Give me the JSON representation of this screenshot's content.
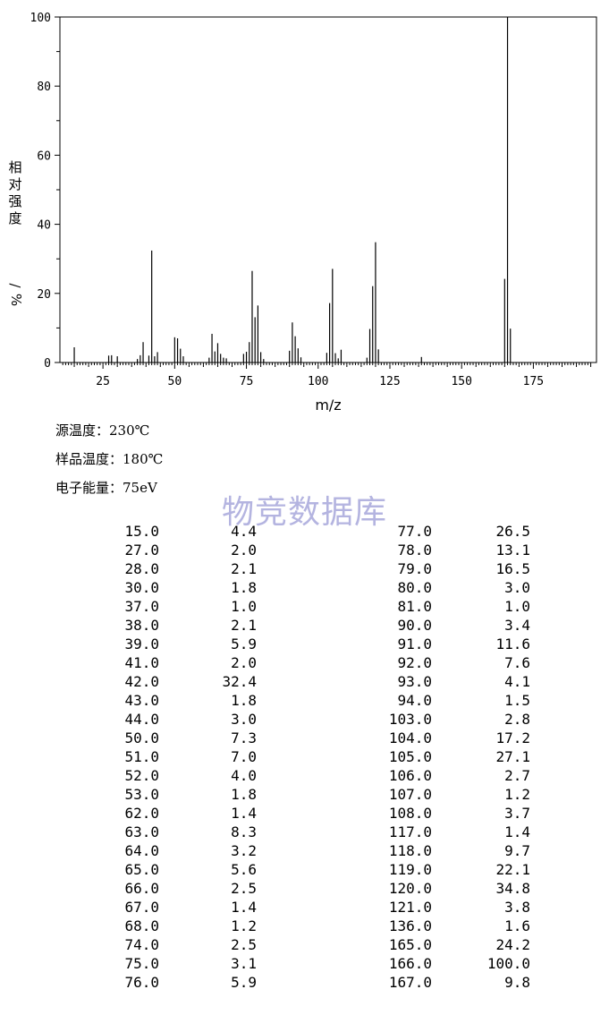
{
  "chart_data": {
    "type": "bar",
    "title": "",
    "xlabel": "m/z",
    "ylabel": "相对强度/%",
    "xlim": [
      10,
      197
    ],
    "ylim": [
      0,
      100
    ],
    "xticks": [
      "25",
      "50",
      "75",
      "100",
      "125",
      "150",
      "175"
    ],
    "yticks": [
      "0",
      "20",
      "40",
      "60",
      "80",
      "100"
    ],
    "grid": false,
    "x": [
      15,
      27,
      28,
      30,
      37,
      38,
      39,
      41,
      42,
      43,
      44,
      50,
      51,
      52,
      53,
      62,
      63,
      64,
      65,
      66,
      67,
      68,
      74,
      75,
      76,
      77,
      78,
      79,
      80,
      81,
      90,
      91,
      92,
      93,
      94,
      103,
      104,
      105,
      106,
      107,
      108,
      117,
      118,
      119,
      120,
      121,
      136,
      165,
      166,
      167
    ],
    "values": [
      4.4,
      2.0,
      2.1,
      1.8,
      1.0,
      2.1,
      5.9,
      2.0,
      32.4,
      1.8,
      3.0,
      7.3,
      7.0,
      4.0,
      1.8,
      1.4,
      8.3,
      3.2,
      5.6,
      2.5,
      1.4,
      1.2,
      2.5,
      3.1,
      5.9,
      26.5,
      13.1,
      16.5,
      3.0,
      1.0,
      3.4,
      11.6,
      7.6,
      4.1,
      1.5,
      2.8,
      17.2,
      27.1,
      2.7,
      1.2,
      3.7,
      1.4,
      9.7,
      22.1,
      34.8,
      3.8,
      1.6,
      24.2,
      100.0,
      9.8
    ]
  },
  "conditions": {
    "source_temp": "源温度：230℃",
    "sample_temp": "样品温度：180℃",
    "electron_energy": "电子能量：75eV"
  },
  "watermark": "物竞数据库",
  "table": {
    "rows": [
      [
        "15.0",
        "4.4",
        "77.0",
        "26.5"
      ],
      [
        "27.0",
        "2.0",
        "78.0",
        "13.1"
      ],
      [
        "28.0",
        "2.1",
        "79.0",
        "16.5"
      ],
      [
        "30.0",
        "1.8",
        "80.0",
        "3.0"
      ],
      [
        "37.0",
        "1.0",
        "81.0",
        "1.0"
      ],
      [
        "38.0",
        "2.1",
        "90.0",
        "3.4"
      ],
      [
        "39.0",
        "5.9",
        "91.0",
        "11.6"
      ],
      [
        "41.0",
        "2.0",
        "92.0",
        "7.6"
      ],
      [
        "42.0",
        "32.4",
        "93.0",
        "4.1"
      ],
      [
        "43.0",
        "1.8",
        "94.0",
        "1.5"
      ],
      [
        "44.0",
        "3.0",
        "103.0",
        "2.8"
      ],
      [
        "50.0",
        "7.3",
        "104.0",
        "17.2"
      ],
      [
        "51.0",
        "7.0",
        "105.0",
        "27.1"
      ],
      [
        "52.0",
        "4.0",
        "106.0",
        "2.7"
      ],
      [
        "53.0",
        "1.8",
        "107.0",
        "1.2"
      ],
      [
        "62.0",
        "1.4",
        "108.0",
        "3.7"
      ],
      [
        "63.0",
        "8.3",
        "117.0",
        "1.4"
      ],
      [
        "64.0",
        "3.2",
        "118.0",
        "9.7"
      ],
      [
        "65.0",
        "5.6",
        "119.0",
        "22.1"
      ],
      [
        "66.0",
        "2.5",
        "120.0",
        "34.8"
      ],
      [
        "67.0",
        "1.4",
        "121.0",
        "3.8"
      ],
      [
        "68.0",
        "1.2",
        "136.0",
        "1.6"
      ],
      [
        "74.0",
        "2.5",
        "165.0",
        "24.2"
      ],
      [
        "75.0",
        "3.1",
        "166.0",
        "100.0"
      ],
      [
        "76.0",
        "5.9",
        "167.0",
        "9.8"
      ]
    ]
  }
}
